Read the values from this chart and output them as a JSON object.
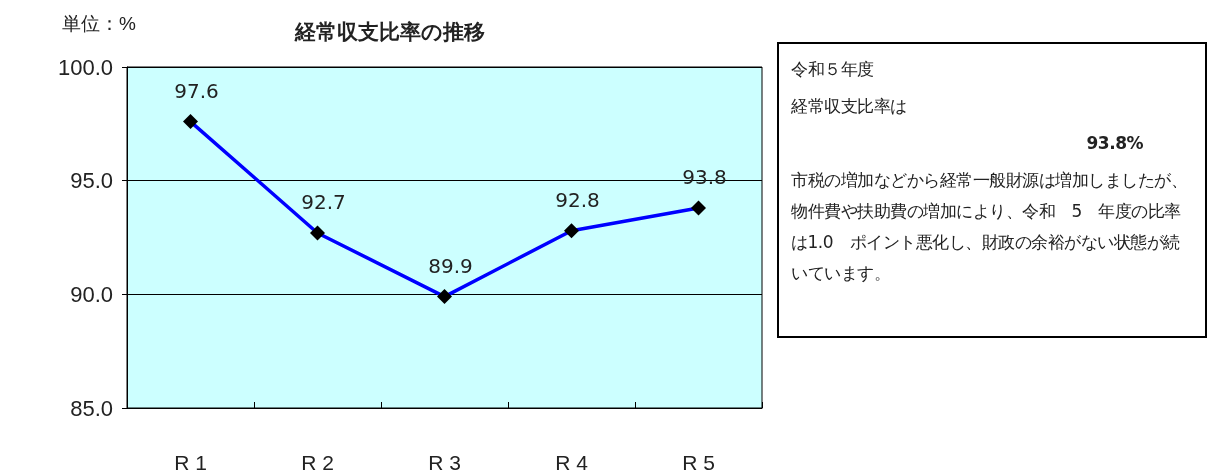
{
  "chart_data": {
    "type": "line",
    "title": "経常収支比率の推移",
    "ylabel": "単位：%",
    "categories": [
      "R 1",
      "R 2",
      "R 3",
      "R 4",
      "R 5"
    ],
    "series": [
      {
        "color": "#0000ff",
        "values": [
          97.6,
          92.7,
          89.9,
          92.8,
          93.8
        ]
      }
    ],
    "ylim": [
      85,
      100
    ],
    "yticks": [
      {
        "value": 85,
        "label": "85.0"
      },
      {
        "value": 90,
        "label": "90.0"
      },
      {
        "value": 95,
        "label": "95.0"
      },
      {
        "value": 100,
        "label": "100.0"
      }
    ],
    "grid": "y",
    "marker": "diamond",
    "data_labels": true,
    "annotations": [
      "令和５年度",
      "経常収支比率は",
      "93.8%",
      "市税の増加などから経常一般財源は増加しましたが、物件費や扶助費の増加により、令和　5　年度の比率は1.0　ポイント悪化し、財政の余裕がない状態が続いています。"
    ]
  }
}
